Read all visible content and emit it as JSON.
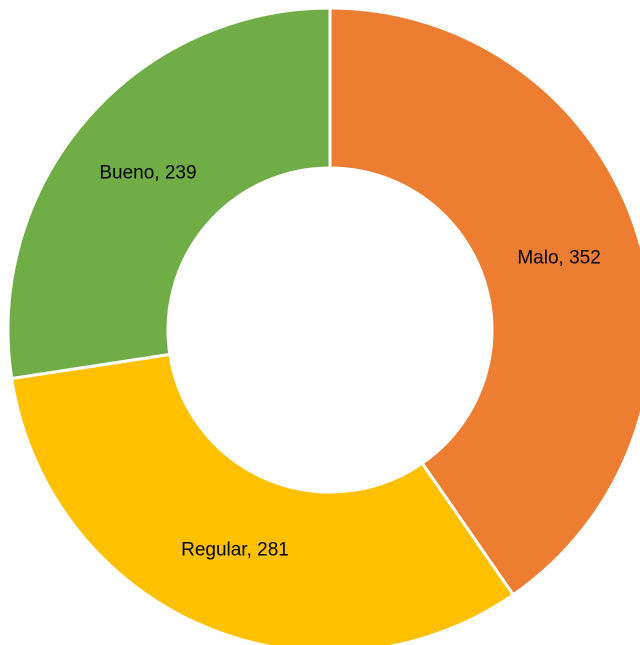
{
  "chart_data": {
    "type": "donut",
    "values": [
      352,
      281,
      239
    ],
    "value_labels": [
      "Malo, 352",
      "Regular, 281",
      "Bueno, 239"
    ],
    "colors": [
      "#ED7D31",
      "#FFC000",
      "#70AD47"
    ]
  }
}
